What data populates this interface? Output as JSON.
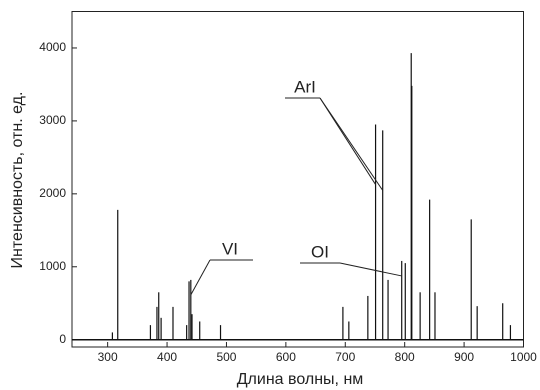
{
  "chart_data": {
    "type": "spectrum",
    "x_label": "Длина волны, нм",
    "y_label": "Интенсивность, отн. ед.",
    "x": [
      308,
      317,
      372,
      383,
      386,
      390,
      410,
      433,
      437,
      440,
      442,
      455,
      490,
      696,
      706,
      738,
      751,
      763,
      772,
      795,
      801,
      811,
      812,
      826,
      842,
      851,
      912,
      922,
      965,
      978
    ],
    "values": [
      100,
      1780,
      200,
      450,
      650,
      300,
      450,
      200,
      800,
      820,
      350,
      250,
      200,
      450,
      250,
      600,
      2950,
      2870,
      820,
      1080,
      1050,
      3930,
      3480,
      650,
      1920,
      650,
      1650,
      460,
      500,
      200
    ],
    "color": "#111111",
    "xlim": [
      240,
      1000
    ],
    "xticks": [
      300,
      400,
      500,
      600,
      700,
      800,
      900,
      1000
    ],
    "ylim": [
      -100,
      4500
    ],
    "yticks": [
      0,
      1000,
      2000,
      3000,
      4000
    ],
    "annotations": [
      {
        "text": "ArI",
        "peaks": [
          16,
          17
        ]
      },
      {
        "text": "VI",
        "peaks": [
          9
        ]
      },
      {
        "text": "OI",
        "peaks": [
          19
        ]
      }
    ]
  }
}
